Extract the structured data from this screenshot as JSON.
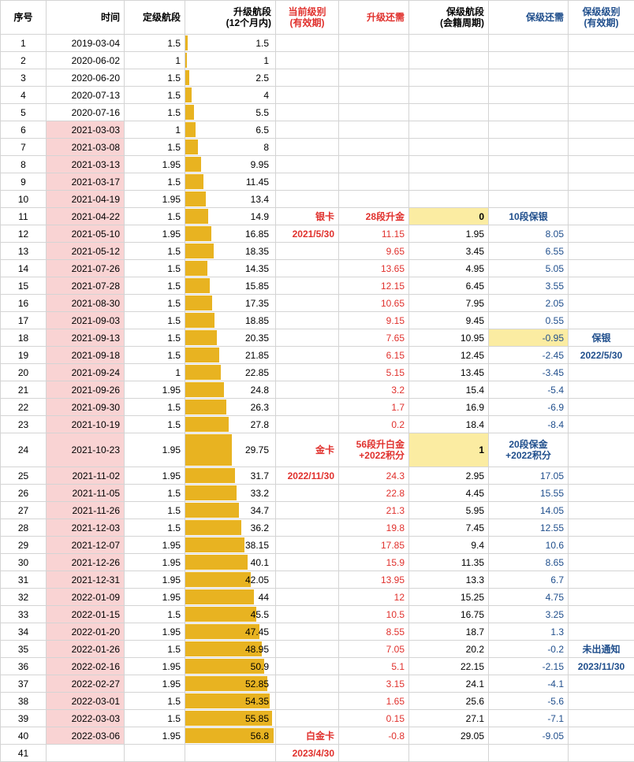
{
  "colors": {
    "bar": "#e8b321",
    "date_highlight": "#f9d3d3",
    "cell_highlight": "#fbeca2",
    "red_text": "#e0302c",
    "blue_text": "#1f4e8c"
  },
  "bar_scale_max": 56.8,
  "headers": {
    "seq": "序号",
    "date": "时间",
    "seg": "定级航段",
    "upgrade_l1": "升级航段",
    "upgrade_l2": "(12个月内)",
    "curlevel_l1": "当前级别",
    "curlevel_l2": "(有效期)",
    "upneed": "升级还需",
    "keep_l1": "保级航段",
    "keep_l2": "(会籍周期)",
    "keepneed": "保级还需",
    "keeplevel_l1": "保级级别",
    "keeplevel_l2": "(有效期)"
  },
  "rows": [
    {
      "seq": "1",
      "date": "2019-03-04",
      "seg": "1.5",
      "up": "1.5",
      "upv": 1.5,
      "cur": "",
      "need": "",
      "keep": "",
      "keepneed": "",
      "kl": ""
    },
    {
      "seq": "2",
      "date": "2020-06-02",
      "seg": "1",
      "up": "1",
      "upv": 1,
      "cur": "",
      "need": "",
      "keep": "",
      "keepneed": "",
      "kl": ""
    },
    {
      "seq": "3",
      "date": "2020-06-20",
      "seg": "1.5",
      "up": "2.5",
      "upv": 2.5,
      "cur": "",
      "need": "",
      "keep": "",
      "keepneed": "",
      "kl": ""
    },
    {
      "seq": "4",
      "date": "2020-07-13",
      "seg": "1.5",
      "up": "4",
      "upv": 4,
      "cur": "",
      "need": "",
      "keep": "",
      "keepneed": "",
      "kl": ""
    },
    {
      "seq": "5",
      "date": "2020-07-16",
      "seg": "1.5",
      "up": "5.5",
      "upv": 5.5,
      "cur": "",
      "need": "",
      "keep": "",
      "keepneed": "",
      "kl": ""
    },
    {
      "seq": "6",
      "date": "2021-03-03",
      "seg": "1",
      "up": "6.5",
      "upv": 6.5,
      "cur": "",
      "need": "",
      "keep": "",
      "keepneed": "",
      "kl": ""
    },
    {
      "seq": "7",
      "date": "2021-03-08",
      "seg": "1.5",
      "up": "8",
      "upv": 8,
      "cur": "",
      "need": "",
      "keep": "",
      "keepneed": "",
      "kl": ""
    },
    {
      "seq": "8",
      "date": "2021-03-13",
      "seg": "1.95",
      "up": "9.95",
      "upv": 9.95,
      "cur": "",
      "need": "",
      "keep": "",
      "keepneed": "",
      "kl": ""
    },
    {
      "seq": "9",
      "date": "2021-03-17",
      "seg": "1.5",
      "up": "11.45",
      "upv": 11.45,
      "cur": "",
      "need": "",
      "keep": "",
      "keepneed": "",
      "kl": ""
    },
    {
      "seq": "10",
      "date": "2021-04-19",
      "seg": "1.95",
      "up": "13.4",
      "upv": 13.4,
      "cur": "",
      "need": "",
      "keep": "",
      "keepneed": "",
      "kl": ""
    },
    {
      "seq": "11",
      "date": "2021-04-22",
      "seg": "1.5",
      "up": "14.9",
      "upv": 14.9,
      "cur": "银卡",
      "need": "28段升金",
      "keep": "0",
      "keepneed": "10段保银",
      "kl": ""
    },
    {
      "seq": "12",
      "date": "2021-05-10",
      "seg": "1.95",
      "up": "16.85",
      "upv": 16.85,
      "cur": "2021/5/30",
      "need": "11.15",
      "keep": "1.95",
      "keepneed": "8.05",
      "kl": ""
    },
    {
      "seq": "13",
      "date": "2021-05-12",
      "seg": "1.5",
      "up": "18.35",
      "upv": 18.35,
      "cur": "",
      "need": "9.65",
      "keep": "3.45",
      "keepneed": "6.55",
      "kl": ""
    },
    {
      "seq": "14",
      "date": "2021-07-26",
      "seg": "1.5",
      "up": "14.35",
      "upv": 14.35,
      "cur": "",
      "need": "13.65",
      "keep": "4.95",
      "keepneed": "5.05",
      "kl": ""
    },
    {
      "seq": "15",
      "date": "2021-07-28",
      "seg": "1.5",
      "up": "15.85",
      "upv": 15.85,
      "cur": "",
      "need": "12.15",
      "keep": "6.45",
      "keepneed": "3.55",
      "kl": ""
    },
    {
      "seq": "16",
      "date": "2021-08-30",
      "seg": "1.5",
      "up": "17.35",
      "upv": 17.35,
      "cur": "",
      "need": "10.65",
      "keep": "7.95",
      "keepneed": "2.05",
      "kl": ""
    },
    {
      "seq": "17",
      "date": "2021-09-03",
      "seg": "1.5",
      "up": "18.85",
      "upv": 18.85,
      "cur": "",
      "need": "9.15",
      "keep": "9.45",
      "keepneed": "0.55",
      "kl": ""
    },
    {
      "seq": "18",
      "date": "2021-09-13",
      "seg": "1.5",
      "up": "20.35",
      "upv": 20.35,
      "cur": "",
      "need": "7.65",
      "keep": "10.95",
      "keepneed": "-0.95",
      "kl": "保银"
    },
    {
      "seq": "19",
      "date": "2021-09-18",
      "seg": "1.5",
      "up": "21.85",
      "upv": 21.85,
      "cur": "",
      "need": "6.15",
      "keep": "12.45",
      "keepneed": "-2.45",
      "kl": "2022/5/30"
    },
    {
      "seq": "20",
      "date": "2021-09-24",
      "seg": "1",
      "up": "22.85",
      "upv": 22.85,
      "cur": "",
      "need": "5.15",
      "keep": "13.45",
      "keepneed": "-3.45",
      "kl": ""
    },
    {
      "seq": "21",
      "date": "2021-09-26",
      "seg": "1.95",
      "up": "24.8",
      "upv": 24.8,
      "cur": "",
      "need": "3.2",
      "keep": "15.4",
      "keepneed": "-5.4",
      "kl": ""
    },
    {
      "seq": "22",
      "date": "2021-09-30",
      "seg": "1.5",
      "up": "26.3",
      "upv": 26.3,
      "cur": "",
      "need": "1.7",
      "keep": "16.9",
      "keepneed": "-6.9",
      "kl": ""
    },
    {
      "seq": "23",
      "date": "2021-10-19",
      "seg": "1.5",
      "up": "27.8",
      "upv": 27.8,
      "cur": "",
      "need": "0.2",
      "keep": "18.4",
      "keepneed": "-8.4",
      "kl": ""
    },
    {
      "seq": "24",
      "date": "2021-10-23",
      "seg": "1.95",
      "up": "29.75",
      "upv": 29.75,
      "cur": "金卡",
      "need": "56段升白金",
      "need2": "+2022积分",
      "keep": "1",
      "keepneed": "20段保金",
      "keepneed2": "+2022积分",
      "kl": ""
    },
    {
      "seq": "25",
      "date": "2021-11-02",
      "seg": "1.95",
      "up": "31.7",
      "upv": 31.7,
      "cur": "2022/11/30",
      "need": "24.3",
      "keep": "2.95",
      "keepneed": "17.05",
      "kl": ""
    },
    {
      "seq": "26",
      "date": "2021-11-05",
      "seg": "1.5",
      "up": "33.2",
      "upv": 33.2,
      "cur": "",
      "need": "22.8",
      "keep": "4.45",
      "keepneed": "15.55",
      "kl": ""
    },
    {
      "seq": "27",
      "date": "2021-11-26",
      "seg": "1.5",
      "up": "34.7",
      "upv": 34.7,
      "cur": "",
      "need": "21.3",
      "keep": "5.95",
      "keepneed": "14.05",
      "kl": ""
    },
    {
      "seq": "28",
      "date": "2021-12-03",
      "seg": "1.5",
      "up": "36.2",
      "upv": 36.2,
      "cur": "",
      "need": "19.8",
      "keep": "7.45",
      "keepneed": "12.55",
      "kl": ""
    },
    {
      "seq": "29",
      "date": "2021-12-07",
      "seg": "1.95",
      "up": "38.15",
      "upv": 38.15,
      "cur": "",
      "need": "17.85",
      "keep": "9.4",
      "keepneed": "10.6",
      "kl": ""
    },
    {
      "seq": "30",
      "date": "2021-12-26",
      "seg": "1.95",
      "up": "40.1",
      "upv": 40.1,
      "cur": "",
      "need": "15.9",
      "keep": "11.35",
      "keepneed": "8.65",
      "kl": ""
    },
    {
      "seq": "31",
      "date": "2021-12-31",
      "seg": "1.95",
      "up": "42.05",
      "upv": 42.05,
      "cur": "",
      "need": "13.95",
      "keep": "13.3",
      "keepneed": "6.7",
      "kl": ""
    },
    {
      "seq": "32",
      "date": "2022-01-09",
      "seg": "1.95",
      "up": "44",
      "upv": 44,
      "cur": "",
      "need": "12",
      "keep": "15.25",
      "keepneed": "4.75",
      "kl": ""
    },
    {
      "seq": "33",
      "date": "2022-01-15",
      "seg": "1.5",
      "up": "45.5",
      "upv": 45.5,
      "cur": "",
      "need": "10.5",
      "keep": "16.75",
      "keepneed": "3.25",
      "kl": ""
    },
    {
      "seq": "34",
      "date": "2022-01-20",
      "seg": "1.95",
      "up": "47.45",
      "upv": 47.45,
      "cur": "",
      "need": "8.55",
      "keep": "18.7",
      "keepneed": "1.3",
      "kl": ""
    },
    {
      "seq": "35",
      "date": "2022-01-26",
      "seg": "1.5",
      "up": "48.95",
      "upv": 48.95,
      "cur": "",
      "need": "7.05",
      "keep": "20.2",
      "keepneed": "-0.2",
      "kl": "未出通知"
    },
    {
      "seq": "36",
      "date": "2022-02-16",
      "seg": "1.95",
      "up": "50.9",
      "upv": 50.9,
      "cur": "",
      "need": "5.1",
      "keep": "22.15",
      "keepneed": "-2.15",
      "kl": "2023/11/30"
    },
    {
      "seq": "37",
      "date": "2022-02-27",
      "seg": "1.95",
      "up": "52.85",
      "upv": 52.85,
      "cur": "",
      "need": "3.15",
      "keep": "24.1",
      "keepneed": "-4.1",
      "kl": ""
    },
    {
      "seq": "38",
      "date": "2022-03-01",
      "seg": "1.5",
      "up": "54.35",
      "upv": 54.35,
      "cur": "",
      "need": "1.65",
      "keep": "25.6",
      "keepneed": "-5.6",
      "kl": ""
    },
    {
      "seq": "39",
      "date": "2022-03-03",
      "seg": "1.5",
      "up": "55.85",
      "upv": 55.85,
      "cur": "",
      "need": "0.15",
      "keep": "27.1",
      "keepneed": "-7.1",
      "kl": ""
    },
    {
      "seq": "40",
      "date": "2022-03-06",
      "seg": "1.95",
      "up": "56.8",
      "upv": 56.8,
      "cur": "白金卡",
      "need": "-0.8",
      "keep": "29.05",
      "keepneed": "-9.05",
      "kl": ""
    },
    {
      "seq": "41",
      "date": "",
      "seg": "",
      "up": "",
      "upv": 0,
      "cur": "2023/4/30",
      "need": "",
      "keep": "",
      "keepneed": "",
      "kl": ""
    }
  ]
}
